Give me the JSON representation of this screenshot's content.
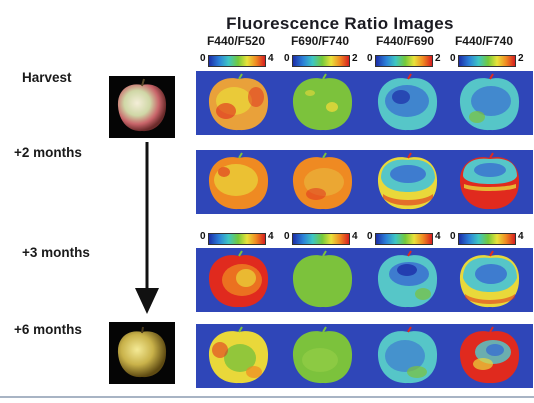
{
  "title": "Fluorescence Ratio Images",
  "columns": [
    "F440/F520",
    "F690/F740",
    "F440/F690",
    "F440/F740"
  ],
  "rows": [
    "Harvest",
    "+2 months",
    "+3 months",
    "+6 months"
  ],
  "colorbar_top": [
    {
      "min": "0",
      "max": "4"
    },
    {
      "min": "0",
      "max": "2"
    },
    {
      "min": "0",
      "max": "2"
    },
    {
      "min": "0",
      "max": "2"
    }
  ],
  "colorbar_mid": [
    {
      "min": "0",
      "max": "4"
    },
    {
      "min": "0",
      "max": "4"
    },
    {
      "min": "0",
      "max": "4"
    },
    {
      "min": "0",
      "max": "4"
    }
  ],
  "colors": {
    "panel_bg": "#2f46b8",
    "red": "#e02a1e",
    "orange": "#ef8a22",
    "yellow": "#e9d83a",
    "green": "#7cc23c",
    "cyan": "#56c6c8",
    "blue": "#3a6fd0"
  }
}
